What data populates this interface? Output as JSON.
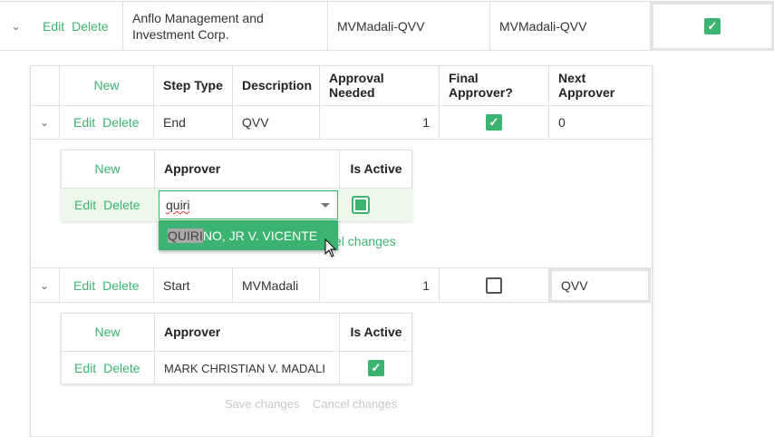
{
  "outer_row": {
    "edit": "Edit",
    "delete": "Delete",
    "company": "Anflo Management and Investment Corp.",
    "col3": "MVMadali-QVV",
    "col4": "MVMadali-QVV",
    "checked": true
  },
  "steps": {
    "headers": {
      "new": "New",
      "step_type": "Step Type",
      "description": "Description",
      "approval_needed": "Approval Needed",
      "final_approver": "Final Approver?",
      "next_approver": "Next Approver"
    },
    "rows": [
      {
        "edit": "Edit",
        "delete": "Delete",
        "step_type": "End",
        "description": "QVV",
        "approval_needed": "1",
        "final_approver": true,
        "next_approver": "0",
        "approvers": {
          "new": "New",
          "approver": "Approver",
          "is_active": "Is Active",
          "edit": "Edit",
          "delete": "Delete",
          "input_value": "quiri",
          "dropdown_option": "QUIRINO, JR V. VICENTE",
          "dropdown_match": "QUIRI",
          "dropdown_rest": "NO, JR V. VICENTE",
          "cancel_partial": "cel changes"
        }
      },
      {
        "edit": "Edit",
        "delete": "Delete",
        "step_type": "Start",
        "description": "MVMadali",
        "approval_needed": "1",
        "final_approver": false,
        "next_approver": "QVV",
        "approvers": {
          "new": "New",
          "approver": "Approver",
          "is_active": "Is Active",
          "edit": "Edit",
          "delete": "Delete",
          "approver_name": "MARK CHRISTIAN V. MADALI",
          "active": true,
          "save": "Save changes",
          "cancel": "Cancel changes"
        }
      }
    ]
  },
  "colors": {
    "accent": "#3cb371",
    "editing_row": "#eef8ea"
  }
}
